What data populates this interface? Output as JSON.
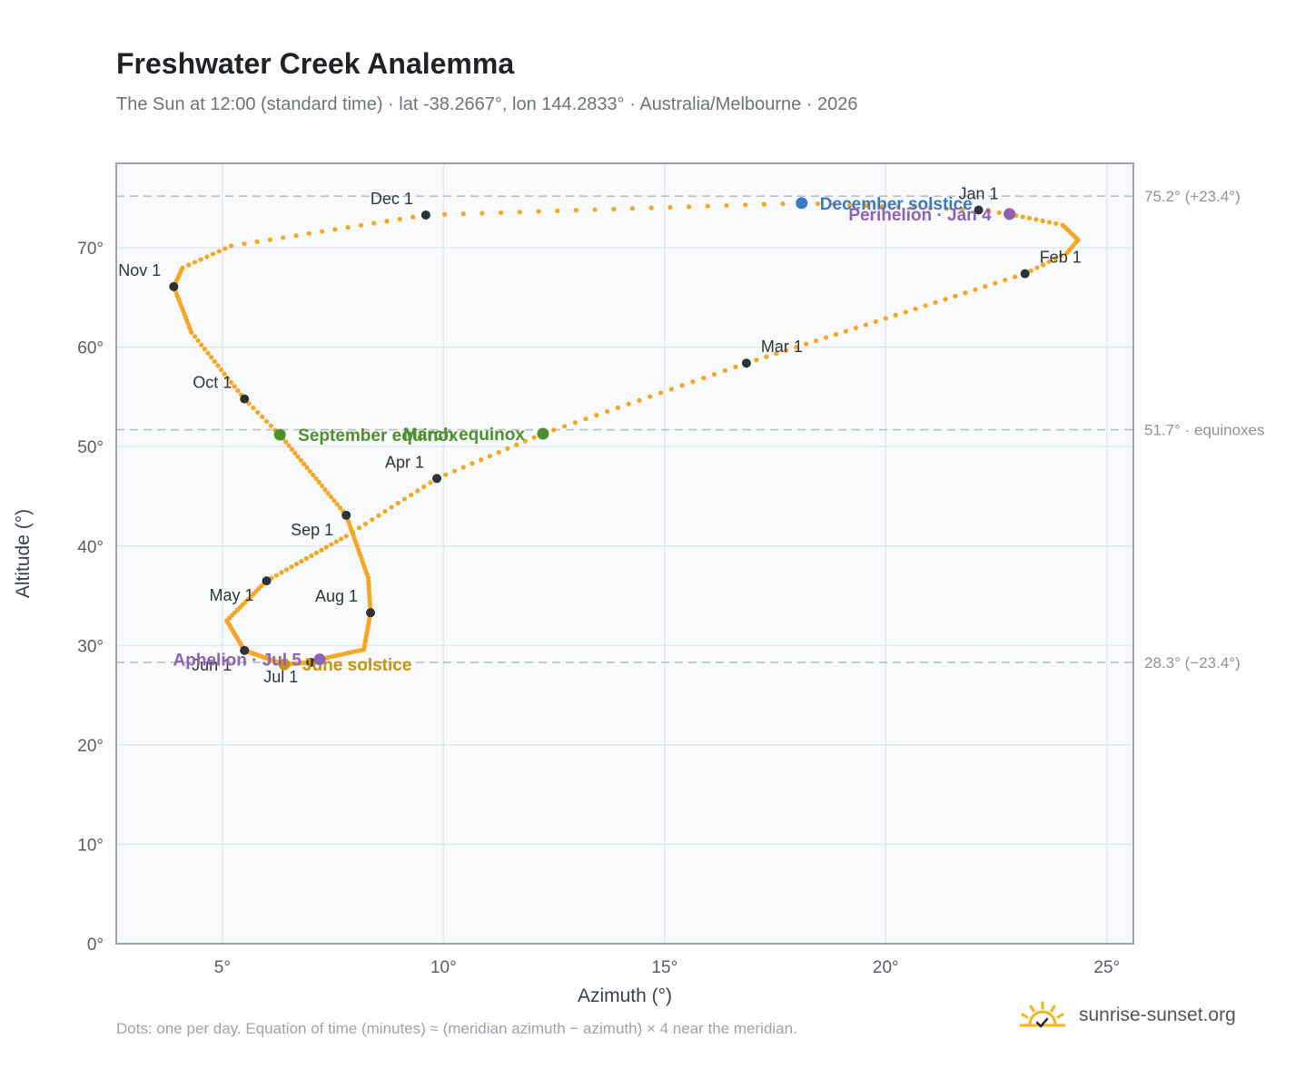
{
  "header": {
    "title": "Freshwater Creek Analemma",
    "subtitle": "The Sun at 12:00 (standard time) · lat -38.2667°, lon 144.2833° · Australia/Melbourne · 2026"
  },
  "footer": {
    "note": "Dots: one per day. Equation of time (minutes) ≈ (meridian azimuth − azimuth) × 4 near the meridian.",
    "brand": "sunrise-sunset.org",
    "brand_icon": "sun-logo-icon"
  },
  "colors": {
    "path": "#f5a623",
    "month_dot": "#2d3238",
    "solstice_december": "#3b78c2",
    "solstice_june": "#c8930e",
    "equinox": "#4e8f2e",
    "apsis": "#8e63b0",
    "plot_bg": "#f8fafc",
    "grid": "#e3e8ee",
    "frame": "#9aa3ae",
    "refline": "#b8bec6"
  },
  "chart_data": {
    "type": "scatter",
    "xlabel": "Azimuth (°)",
    "ylabel": "Altitude (°)",
    "xlim": [
      2.6,
      25.6
    ],
    "ylim": [
      0,
      78.5
    ],
    "xticks": [
      5,
      10,
      15,
      20,
      25
    ],
    "xtick_labels": [
      "5°",
      "10°",
      "15°",
      "20°",
      "25°"
    ],
    "yticks": [
      0,
      10,
      20,
      30,
      40,
      50,
      60,
      70
    ],
    "ytick_labels": [
      "0°",
      "10°",
      "20°",
      "30°",
      "40°",
      "50°",
      "60°",
      "70°"
    ],
    "grid": true,
    "daily_points": [
      {
        "doy": 1,
        "az": 22.1,
        "alt": 73.8
      },
      {
        "doy": 4,
        "az": 22.8,
        "alt": 73.4
      },
      {
        "doy": 12,
        "az": 24.0,
        "alt": 72.3
      },
      {
        "doy": 20,
        "az": 24.35,
        "alt": 70.8
      },
      {
        "doy": 25,
        "az": 24.1,
        "alt": 69.5
      },
      {
        "doy": 32,
        "az": 23.15,
        "alt": 67.4
      },
      {
        "doy": 60,
        "az": 16.85,
        "alt": 58.4
      },
      {
        "doy": 79,
        "az": 12.25,
        "alt": 51.3
      },
      {
        "doy": 91,
        "az": 9.85,
        "alt": 46.8
      },
      {
        "doy": 105,
        "az": 7.8,
        "alt": 41.0
      },
      {
        "doy": 121,
        "az": 6.0,
        "alt": 36.5
      },
      {
        "doy": 136,
        "az": 5.1,
        "alt": 32.5
      },
      {
        "doy": 152,
        "az": 5.5,
        "alt": 29.5
      },
      {
        "doy": 172,
        "az": 6.4,
        "alt": 28.1
      },
      {
        "doy": 182,
        "az": 7.0,
        "alt": 28.3
      },
      {
        "doy": 186,
        "az": 7.2,
        "alt": 28.6
      },
      {
        "doy": 200,
        "az": 8.2,
        "alt": 29.6
      },
      {
        "doy": 213,
        "az": 8.35,
        "alt": 33.3
      },
      {
        "doy": 224,
        "az": 8.3,
        "alt": 36.8
      },
      {
        "doy": 244,
        "az": 7.8,
        "alt": 43.1
      },
      {
        "doy": 266,
        "az": 6.3,
        "alt": 51.2
      },
      {
        "doy": 274,
        "az": 5.5,
        "alt": 54.8
      },
      {
        "doy": 290,
        "az": 4.3,
        "alt": 61.5
      },
      {
        "doy": 305,
        "az": 3.9,
        "alt": 66.1
      },
      {
        "doy": 312,
        "az": 4.1,
        "alt": 68.0
      },
      {
        "doy": 320,
        "az": 5.2,
        "alt": 70.2
      },
      {
        "doy": 335,
        "az": 9.6,
        "alt": 73.3
      },
      {
        "doy": 355,
        "az": 18.1,
        "alt": 74.5
      },
      {
        "doy": 366,
        "az": 22.1,
        "alt": 73.8
      }
    ],
    "month_markers": [
      {
        "label": "Jan 1",
        "az": 22.1,
        "alt": 73.8,
        "pos": "above"
      },
      {
        "label": "Feb 1",
        "az": 23.15,
        "alt": 67.4,
        "pos": "above-right"
      },
      {
        "label": "Mar 1",
        "az": 16.85,
        "alt": 58.4,
        "pos": "above-right"
      },
      {
        "label": "Apr 1",
        "az": 9.85,
        "alt": 46.8,
        "pos": "above-left"
      },
      {
        "label": "May 1",
        "az": 6.0,
        "alt": 36.5,
        "pos": "below-left"
      },
      {
        "label": "Jun 1",
        "az": 5.5,
        "alt": 29.5,
        "pos": "below-left"
      },
      {
        "label": "Jul 1",
        "az": 7.0,
        "alt": 28.3,
        "pos": "below-left"
      },
      {
        "label": "Aug 1",
        "az": 8.35,
        "alt": 33.3,
        "pos": "above-left"
      },
      {
        "label": "Sep 1",
        "az": 7.8,
        "alt": 43.1,
        "pos": "below-left"
      },
      {
        "label": "Oct 1",
        "az": 5.5,
        "alt": 54.8,
        "pos": "above-left"
      },
      {
        "label": "Nov 1",
        "az": 3.9,
        "alt": 66.1,
        "pos": "above-left"
      },
      {
        "label": "Dec 1",
        "az": 9.6,
        "alt": 73.3,
        "pos": "above-left"
      }
    ],
    "events": [
      {
        "label": "December solstice",
        "az": 18.1,
        "alt": 74.5,
        "color": "#3b78c2",
        "anchor": "start"
      },
      {
        "label": "Perihelion · Jan 4",
        "az": 22.8,
        "alt": 73.4,
        "color": "#8e63b0",
        "anchor": "end"
      },
      {
        "label": "March equinox",
        "az": 12.25,
        "alt": 51.3,
        "color": "#4e8f2e",
        "anchor": "end"
      },
      {
        "label": "September equinox",
        "az": 6.3,
        "alt": 51.2,
        "color": "#4e8f2e",
        "anchor": "start"
      },
      {
        "label": "June solstice",
        "az": 6.4,
        "alt": 28.1,
        "color": "#c8930e",
        "anchor": "start"
      },
      {
        "label": "Aphelion · Jul 5",
        "az": 7.2,
        "alt": 28.6,
        "color": "#8e63b0",
        "anchor": "end"
      }
    ],
    "reference_lines": [
      {
        "alt": 75.2,
        "label": "75.2° (+23.4°)"
      },
      {
        "alt": 51.7,
        "label": "51.7° · equinoxes"
      },
      {
        "alt": 28.3,
        "label": "28.3° (−23.4°)"
      }
    ]
  }
}
